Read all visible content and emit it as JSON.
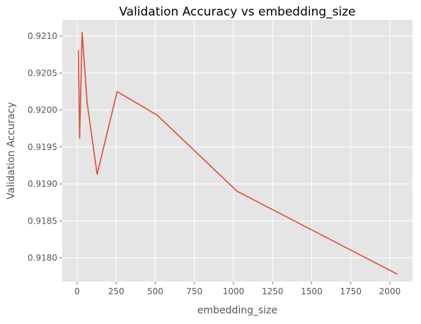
{
  "chart_data": {
    "type": "line",
    "title": "Validation Accuracy vs embedding_size",
    "xlabel": "embedding_size",
    "ylabel": "Validation Accuracy",
    "xlim": [
      -95,
      2145
    ],
    "ylim": [
      0.91768,
      0.92122
    ],
    "x_ticks": [
      0,
      250,
      500,
      750,
      1000,
      1250,
      1500,
      1750,
      2000
    ],
    "y_ticks": [
      0.918,
      0.9185,
      0.919,
      0.9195,
      0.92,
      0.9205,
      0.921
    ],
    "y_tick_labels": [
      "0.9180",
      "0.9185",
      "0.9190",
      "0.9195",
      "0.9200",
      "0.9205",
      "0.9210"
    ],
    "grid": true,
    "legend": "none",
    "series": [
      {
        "color": "#E24A33",
        "x": [
          8,
          16,
          32,
          64,
          128,
          256,
          512,
          1024,
          2048
        ],
        "y": [
          0.92081,
          0.91962,
          0.92105,
          0.9201,
          0.91913,
          0.92025,
          0.91993,
          0.9189,
          0.91778
        ]
      }
    ]
  }
}
